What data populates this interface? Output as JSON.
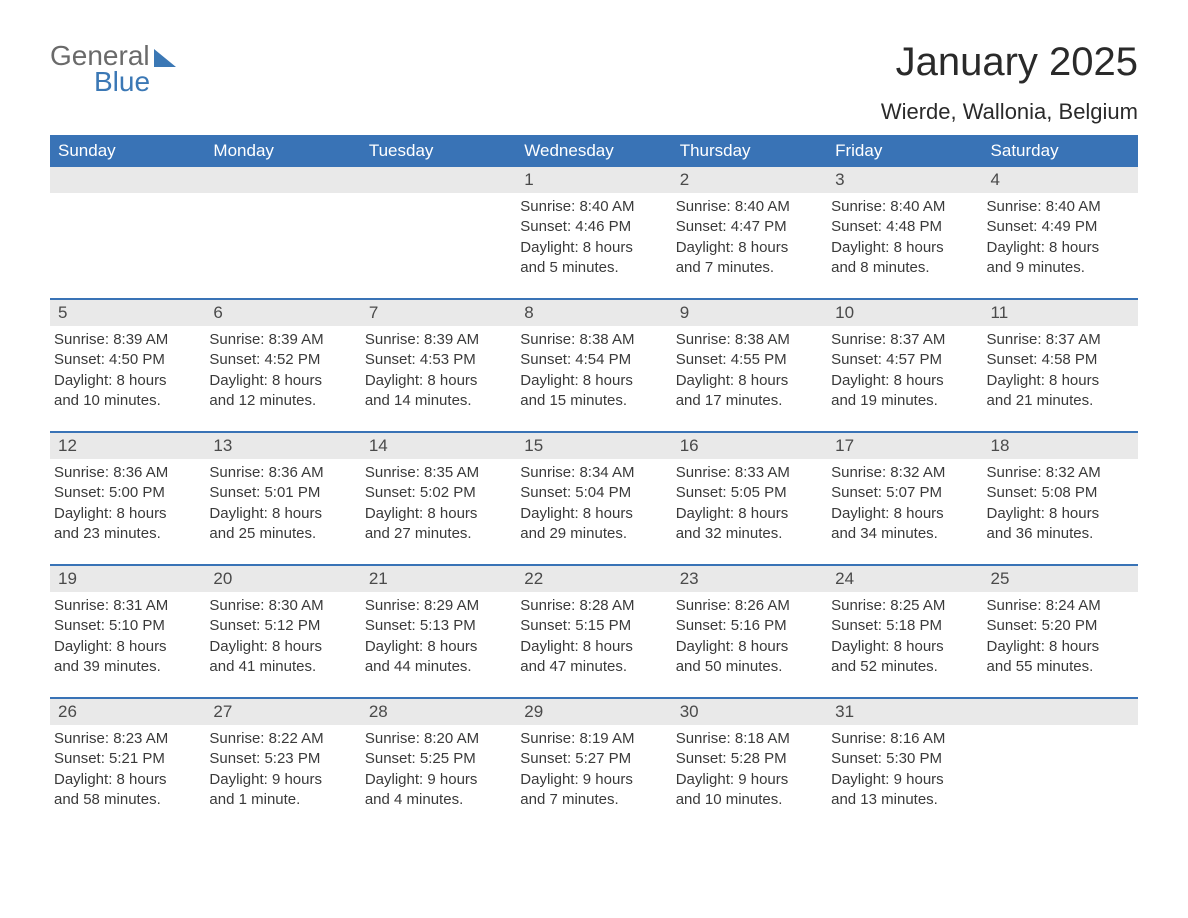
{
  "logo": {
    "text_general": "General",
    "text_blue": "Blue",
    "general_color": "#6a6a6a",
    "blue_color": "#3b78b5"
  },
  "title": "January 2025",
  "location": "Wierde, Wallonia, Belgium",
  "colors": {
    "header_bg": "#3973b6",
    "header_text": "#ffffff",
    "row_sep": "#3973b6",
    "daynum_bg": "#e9e9e9",
    "body_text": "#3a3a3a",
    "page_bg": "#ffffff"
  },
  "fonts": {
    "title_pt": 40,
    "location_pt": 22,
    "header_pt": 17,
    "daynum_pt": 17,
    "detail_pt": 15
  },
  "dayHeaders": [
    "Sunday",
    "Monday",
    "Tuesday",
    "Wednesday",
    "Thursday",
    "Friday",
    "Saturday"
  ],
  "weeks": [
    [
      {
        "day": "",
        "sunrise": "",
        "sunset": "",
        "daylight1": "",
        "daylight2": "",
        "empty": true
      },
      {
        "day": "",
        "sunrise": "",
        "sunset": "",
        "daylight1": "",
        "daylight2": "",
        "empty": true
      },
      {
        "day": "",
        "sunrise": "",
        "sunset": "",
        "daylight1": "",
        "daylight2": "",
        "empty": true
      },
      {
        "day": "1",
        "sunrise": "Sunrise: 8:40 AM",
        "sunset": "Sunset: 4:46 PM",
        "daylight1": "Daylight: 8 hours",
        "daylight2": "and 5 minutes."
      },
      {
        "day": "2",
        "sunrise": "Sunrise: 8:40 AM",
        "sunset": "Sunset: 4:47 PM",
        "daylight1": "Daylight: 8 hours",
        "daylight2": "and 7 minutes."
      },
      {
        "day": "3",
        "sunrise": "Sunrise: 8:40 AM",
        "sunset": "Sunset: 4:48 PM",
        "daylight1": "Daylight: 8 hours",
        "daylight2": "and 8 minutes."
      },
      {
        "day": "4",
        "sunrise": "Sunrise: 8:40 AM",
        "sunset": "Sunset: 4:49 PM",
        "daylight1": "Daylight: 8 hours",
        "daylight2": "and 9 minutes."
      }
    ],
    [
      {
        "day": "5",
        "sunrise": "Sunrise: 8:39 AM",
        "sunset": "Sunset: 4:50 PM",
        "daylight1": "Daylight: 8 hours",
        "daylight2": "and 10 minutes."
      },
      {
        "day": "6",
        "sunrise": "Sunrise: 8:39 AM",
        "sunset": "Sunset: 4:52 PM",
        "daylight1": "Daylight: 8 hours",
        "daylight2": "and 12 minutes."
      },
      {
        "day": "7",
        "sunrise": "Sunrise: 8:39 AM",
        "sunset": "Sunset: 4:53 PM",
        "daylight1": "Daylight: 8 hours",
        "daylight2": "and 14 minutes."
      },
      {
        "day": "8",
        "sunrise": "Sunrise: 8:38 AM",
        "sunset": "Sunset: 4:54 PM",
        "daylight1": "Daylight: 8 hours",
        "daylight2": "and 15 minutes."
      },
      {
        "day": "9",
        "sunrise": "Sunrise: 8:38 AM",
        "sunset": "Sunset: 4:55 PM",
        "daylight1": "Daylight: 8 hours",
        "daylight2": "and 17 minutes."
      },
      {
        "day": "10",
        "sunrise": "Sunrise: 8:37 AM",
        "sunset": "Sunset: 4:57 PM",
        "daylight1": "Daylight: 8 hours",
        "daylight2": "and 19 minutes."
      },
      {
        "day": "11",
        "sunrise": "Sunrise: 8:37 AM",
        "sunset": "Sunset: 4:58 PM",
        "daylight1": "Daylight: 8 hours",
        "daylight2": "and 21 minutes."
      }
    ],
    [
      {
        "day": "12",
        "sunrise": "Sunrise: 8:36 AM",
        "sunset": "Sunset: 5:00 PM",
        "daylight1": "Daylight: 8 hours",
        "daylight2": "and 23 minutes."
      },
      {
        "day": "13",
        "sunrise": "Sunrise: 8:36 AM",
        "sunset": "Sunset: 5:01 PM",
        "daylight1": "Daylight: 8 hours",
        "daylight2": "and 25 minutes."
      },
      {
        "day": "14",
        "sunrise": "Sunrise: 8:35 AM",
        "sunset": "Sunset: 5:02 PM",
        "daylight1": "Daylight: 8 hours",
        "daylight2": "and 27 minutes."
      },
      {
        "day": "15",
        "sunrise": "Sunrise: 8:34 AM",
        "sunset": "Sunset: 5:04 PM",
        "daylight1": "Daylight: 8 hours",
        "daylight2": "and 29 minutes."
      },
      {
        "day": "16",
        "sunrise": "Sunrise: 8:33 AM",
        "sunset": "Sunset: 5:05 PM",
        "daylight1": "Daylight: 8 hours",
        "daylight2": "and 32 minutes."
      },
      {
        "day": "17",
        "sunrise": "Sunrise: 8:32 AM",
        "sunset": "Sunset: 5:07 PM",
        "daylight1": "Daylight: 8 hours",
        "daylight2": "and 34 minutes."
      },
      {
        "day": "18",
        "sunrise": "Sunrise: 8:32 AM",
        "sunset": "Sunset: 5:08 PM",
        "daylight1": "Daylight: 8 hours",
        "daylight2": "and 36 minutes."
      }
    ],
    [
      {
        "day": "19",
        "sunrise": "Sunrise: 8:31 AM",
        "sunset": "Sunset: 5:10 PM",
        "daylight1": "Daylight: 8 hours",
        "daylight2": "and 39 minutes."
      },
      {
        "day": "20",
        "sunrise": "Sunrise: 8:30 AM",
        "sunset": "Sunset: 5:12 PM",
        "daylight1": "Daylight: 8 hours",
        "daylight2": "and 41 minutes."
      },
      {
        "day": "21",
        "sunrise": "Sunrise: 8:29 AM",
        "sunset": "Sunset: 5:13 PM",
        "daylight1": "Daylight: 8 hours",
        "daylight2": "and 44 minutes."
      },
      {
        "day": "22",
        "sunrise": "Sunrise: 8:28 AM",
        "sunset": "Sunset: 5:15 PM",
        "daylight1": "Daylight: 8 hours",
        "daylight2": "and 47 minutes."
      },
      {
        "day": "23",
        "sunrise": "Sunrise: 8:26 AM",
        "sunset": "Sunset: 5:16 PM",
        "daylight1": "Daylight: 8 hours",
        "daylight2": "and 50 minutes."
      },
      {
        "day": "24",
        "sunrise": "Sunrise: 8:25 AM",
        "sunset": "Sunset: 5:18 PM",
        "daylight1": "Daylight: 8 hours",
        "daylight2": "and 52 minutes."
      },
      {
        "day": "25",
        "sunrise": "Sunrise: 8:24 AM",
        "sunset": "Sunset: 5:20 PM",
        "daylight1": "Daylight: 8 hours",
        "daylight2": "and 55 minutes."
      }
    ],
    [
      {
        "day": "26",
        "sunrise": "Sunrise: 8:23 AM",
        "sunset": "Sunset: 5:21 PM",
        "daylight1": "Daylight: 8 hours",
        "daylight2": "and 58 minutes."
      },
      {
        "day": "27",
        "sunrise": "Sunrise: 8:22 AM",
        "sunset": "Sunset: 5:23 PM",
        "daylight1": "Daylight: 9 hours",
        "daylight2": "and 1 minute."
      },
      {
        "day": "28",
        "sunrise": "Sunrise: 8:20 AM",
        "sunset": "Sunset: 5:25 PM",
        "daylight1": "Daylight: 9 hours",
        "daylight2": "and 4 minutes."
      },
      {
        "day": "29",
        "sunrise": "Sunrise: 8:19 AM",
        "sunset": "Sunset: 5:27 PM",
        "daylight1": "Daylight: 9 hours",
        "daylight2": "and 7 minutes."
      },
      {
        "day": "30",
        "sunrise": "Sunrise: 8:18 AM",
        "sunset": "Sunset: 5:28 PM",
        "daylight1": "Daylight: 9 hours",
        "daylight2": "and 10 minutes."
      },
      {
        "day": "31",
        "sunrise": "Sunrise: 8:16 AM",
        "sunset": "Sunset: 5:30 PM",
        "daylight1": "Daylight: 9 hours",
        "daylight2": "and 13 minutes."
      },
      {
        "day": "",
        "sunrise": "",
        "sunset": "",
        "daylight1": "",
        "daylight2": "",
        "empty": true
      }
    ]
  ]
}
